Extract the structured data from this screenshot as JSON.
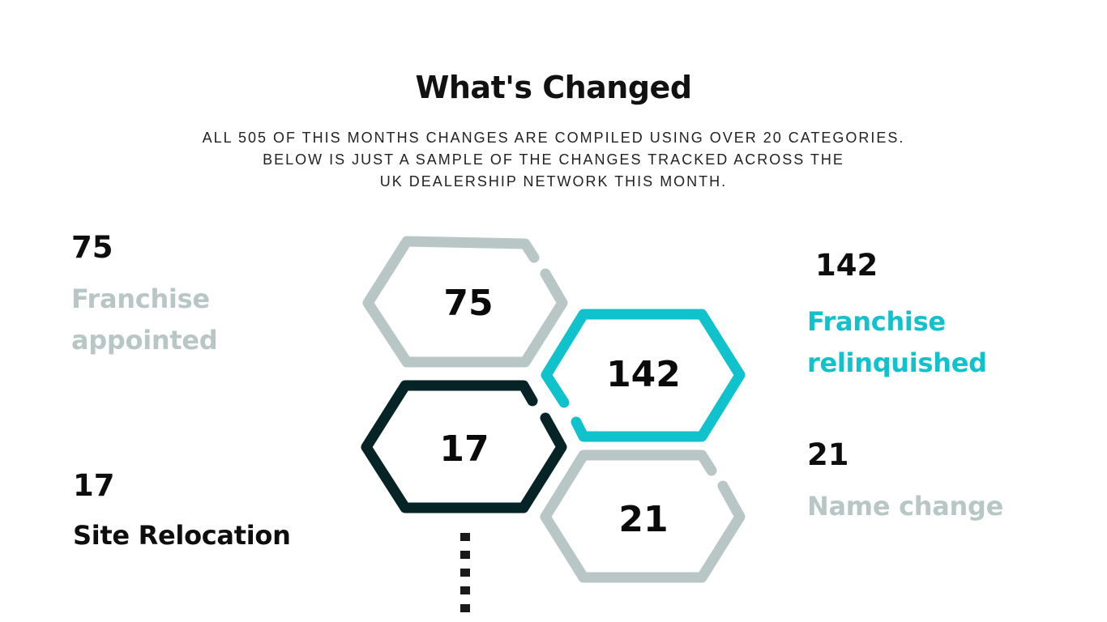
{
  "header": {
    "title": "What's Changed",
    "subtitle_lines": [
      "ALL 505 OF THIS MONTHS CHANGES ARE COMPILED USING OVER 20 CATEGORIES.",
      "BELOW IS JUST A SAMPLE OF THE CHANGES TRACKED ACROSS THE",
      "UK DEALERSHIP NETWORK THIS MONTH."
    ]
  },
  "colors": {
    "gray": "#b8c7c5",
    "teal": "#0fc2cc",
    "dark": "#062326",
    "text": "#0e0e0e"
  },
  "stats": [
    {
      "value": "75",
      "label_lines": [
        "Franchise",
        "appointed"
      ],
      "color": "#b8c7c5"
    },
    {
      "value": "17",
      "label_lines": [
        "Site Relocation"
      ],
      "color": "#0e0e0e"
    },
    {
      "value": "142",
      "label_lines": [
        "Franchise",
        "relinquished"
      ],
      "color": "#0fc2cc"
    },
    {
      "value": "21",
      "label_lines": [
        "Name change"
      ],
      "color": "#b8c7c5"
    }
  ],
  "hexagons": [
    {
      "value": "75",
      "color": "#b8c7c5"
    },
    {
      "value": "142",
      "color": "#0fc2cc"
    },
    {
      "value": "17",
      "color": "#062326"
    },
    {
      "value": "21",
      "color": "#b8c7c5"
    }
  ]
}
